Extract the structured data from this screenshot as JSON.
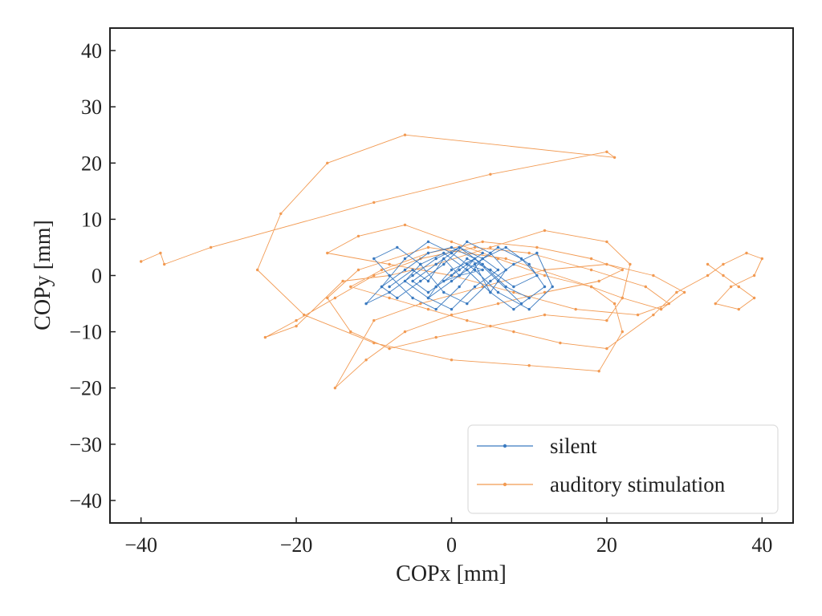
{
  "chart_data": {
    "type": "line",
    "xlabel": "COPx [mm]",
    "ylabel": "COPy [mm]",
    "xlim": [
      -44,
      44
    ],
    "ylim": [
      -44,
      44
    ],
    "xticks": [
      -40,
      -20,
      0,
      20,
      40
    ],
    "yticks": [
      -40,
      -30,
      -20,
      -10,
      0,
      10,
      20,
      30,
      40
    ],
    "xtick_labels": [
      "−40",
      "−20",
      "0",
      "20",
      "40"
    ],
    "ytick_labels": [
      "−40",
      "−30",
      "−20",
      "−10",
      "0",
      "10",
      "20",
      "30",
      "40"
    ],
    "grid": false,
    "legend_position": "lower-right",
    "series": [
      {
        "name": "silent",
        "color": "#3a7ac0",
        "x": [
          -8,
          -5,
          -3,
          -1,
          1,
          3,
          5,
          7,
          5,
          2,
          -1,
          -4,
          -7,
          -9,
          -6,
          -3,
          0,
          3,
          6,
          9,
          12,
          10,
          7,
          4,
          1,
          -2,
          -5,
          -8,
          -10,
          -7,
          -4,
          -1,
          2,
          5,
          8,
          11,
          13,
          10,
          6,
          3,
          0,
          -3,
          -6,
          -9,
          -11,
          -8,
          -5,
          -2,
          1,
          4,
          7,
          10,
          8,
          5,
          2,
          -1,
          -4,
          -6,
          -3,
          0,
          3,
          6,
          4,
          1,
          -2,
          -5,
          -3,
          0,
          2,
          5,
          8,
          11,
          9,
          6,
          3,
          0,
          -3,
          -2,
          1,
          4,
          2,
          -1,
          1,
          3,
          0,
          -2,
          0,
          2,
          4,
          1
        ],
        "y": [
          -2,
          1,
          -1,
          3,
          0,
          2,
          -3,
          1,
          4,
          6,
          2,
          -1,
          -4,
          -2,
          1,
          4,
          5,
          3,
          -1,
          -5,
          -2,
          2,
          5,
          3,
          -2,
          -6,
          -4,
          0,
          3,
          5,
          2,
          -3,
          -5,
          -1,
          2,
          4,
          -2,
          -6,
          -3,
          1,
          4,
          6,
          3,
          -2,
          -5,
          -3,
          0,
          3,
          5,
          2,
          -2,
          -4,
          -6,
          -3,
          1,
          4,
          2,
          -1,
          -4,
          -6,
          -2,
          1,
          3,
          5,
          2,
          -1,
          -3,
          0,
          3,
          1,
          -2,
          0,
          3,
          5,
          2,
          -1,
          -4,
          -2,
          1,
          4,
          2,
          -1,
          0,
          3,
          1,
          -2,
          0,
          2,
          1,
          0
        ]
      },
      {
        "name": "auditory stimulation",
        "color": "#f29a52",
        "x": [
          -40,
          -37.5,
          -37,
          -31,
          -10,
          5,
          20,
          21,
          -6,
          -16,
          -22,
          -25,
          -19,
          -10,
          0,
          10,
          19,
          22,
          21,
          18,
          7,
          -3,
          -12,
          -16,
          -13,
          -8,
          -2,
          5,
          12,
          20,
          22,
          23,
          20,
          12,
          5,
          -2,
          -8,
          -14,
          -20,
          -24,
          -20,
          -15,
          -10,
          -4,
          3,
          10,
          18,
          25,
          28,
          24,
          16,
          8,
          0,
          -8,
          -16,
          -12,
          -6,
          0,
          6,
          12,
          18,
          22,
          27,
          30,
          26,
          20,
          12,
          4,
          -4,
          -10,
          -15,
          -11,
          -6,
          0,
          6,
          12,
          19,
          22,
          18,
          11,
          4,
          -3,
          -9,
          -13,
          -8,
          -3,
          2,
          8,
          14,
          20,
          26,
          29,
          33,
          35,
          38,
          40,
          39,
          36,
          34,
          37,
          39,
          37,
          35,
          33
        ],
        "y": [
          2.5,
          4,
          2,
          5,
          13,
          18,
          22,
          21,
          25,
          20,
          11,
          1,
          -7,
          -12,
          -15,
          -16,
          -17,
          -10,
          -5,
          -2,
          3,
          5,
          1,
          -4,
          -10,
          -13,
          -11,
          -9,
          -7,
          -8,
          -4,
          2,
          6,
          8,
          5,
          2,
          0,
          -1,
          -9,
          -11,
          -8,
          -4,
          0,
          3,
          5,
          4,
          1,
          -2,
          -5,
          -7,
          -6,
          -3,
          0,
          2,
          4,
          7,
          9,
          6,
          3,
          0,
          -2,
          -4,
          -6,
          -3,
          0,
          2,
          1,
          -2,
          -5,
          -8,
          -20,
          -15,
          -10,
          -7,
          -5,
          -3,
          -1,
          1,
          3,
          5,
          6,
          4,
          1,
          -2,
          -4,
          -6,
          -8,
          -10,
          -12,
          -13,
          -7,
          -3,
          0,
          2,
          4,
          3,
          0,
          -2,
          -5,
          -6,
          -4,
          -2,
          0,
          2
        ]
      }
    ]
  }
}
